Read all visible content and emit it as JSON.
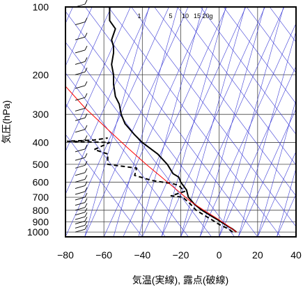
{
  "chart_data": {
    "type": "line",
    "title": "",
    "xlabel": "気温(実線), 露点(破線)",
    "ylabel": "気圧(hPa)",
    "xlim": [
      -80,
      40
    ],
    "ylim": [
      1050,
      100
    ],
    "y_scale": "log",
    "x_ticks": [
      -80,
      -60,
      -40,
      -20,
      0,
      20,
      40
    ],
    "x_tick_labels": [
      "−80",
      "−60",
      "−40",
      "−20",
      "0",
      "20",
      "40"
    ],
    "y_ticks": [
      100,
      200,
      300,
      400,
      500,
      600,
      700,
      800,
      900,
      1000
    ],
    "y_tick_labels": [
      "100",
      "200",
      "300",
      "400",
      "500",
      "600",
      "700",
      "800",
      "900",
      "1000"
    ],
    "mixing_ratio_labels": [
      "1",
      "5",
      "10",
      "15",
      "20g"
    ],
    "series": [
      {
        "style": "solid",
        "color": "#000000",
        "points": [
          [
            9,
            1000
          ],
          [
            7,
            970
          ],
          [
            3,
            925
          ],
          [
            -1,
            880
          ],
          [
            -4,
            850
          ],
          [
            -9,
            800
          ],
          [
            -13,
            750
          ],
          [
            -16,
            700
          ],
          [
            -17,
            650
          ],
          [
            -20,
            600
          ],
          [
            -21,
            570
          ],
          [
            -24,
            550
          ],
          [
            -27,
            500
          ],
          [
            -32,
            450
          ],
          [
            -40,
            400
          ],
          [
            -44,
            370
          ],
          [
            -49,
            330
          ],
          [
            -51,
            300
          ],
          [
            -52,
            270
          ],
          [
            -54,
            250
          ],
          [
            -55,
            220
          ],
          [
            -55,
            200
          ],
          [
            -56,
            180
          ],
          [
            -55,
            160
          ],
          [
            -55,
            150
          ],
          [
            -56,
            140
          ],
          [
            -54,
            125
          ],
          [
            -57,
            115
          ],
          [
            -57,
            100
          ]
        ]
      },
      {
        "style": "dashed",
        "color": "#000000",
        "points": [
          [
            7,
            1000
          ],
          [
            5,
            970
          ],
          [
            0,
            925
          ],
          [
            -4,
            880
          ],
          [
            -7,
            850
          ],
          [
            -12,
            800
          ],
          [
            -15,
            750
          ],
          [
            -19,
            700
          ],
          [
            -25,
            690
          ],
          [
            -18,
            660
          ],
          [
            -21,
            620
          ],
          [
            -24,
            610
          ],
          [
            -35,
            590
          ],
          [
            -44,
            560
          ],
          [
            -43,
            520
          ],
          [
            -58,
            500
          ],
          [
            -58,
            450
          ],
          [
            -65,
            430
          ],
          [
            -57,
            400
          ],
          [
            -79,
            395
          ],
          [
            -65,
            390
          ],
          [
            -58,
            382
          ]
        ]
      },
      {
        "style": "solid",
        "color": "#ff0000",
        "points": [
          [
            9,
            1000
          ],
          [
            4,
            930
          ],
          [
            -2,
            860
          ],
          [
            -8,
            800
          ],
          [
            -15,
            730
          ],
          [
            -22,
            650
          ],
          [
            -30,
            570
          ],
          [
            -38,
            500
          ],
          [
            -48,
            420
          ],
          [
            -58,
            350
          ],
          [
            -70,
            280
          ],
          [
            -80,
            225
          ]
        ]
      }
    ],
    "grid": true,
    "wind_barbs": "left edge"
  }
}
